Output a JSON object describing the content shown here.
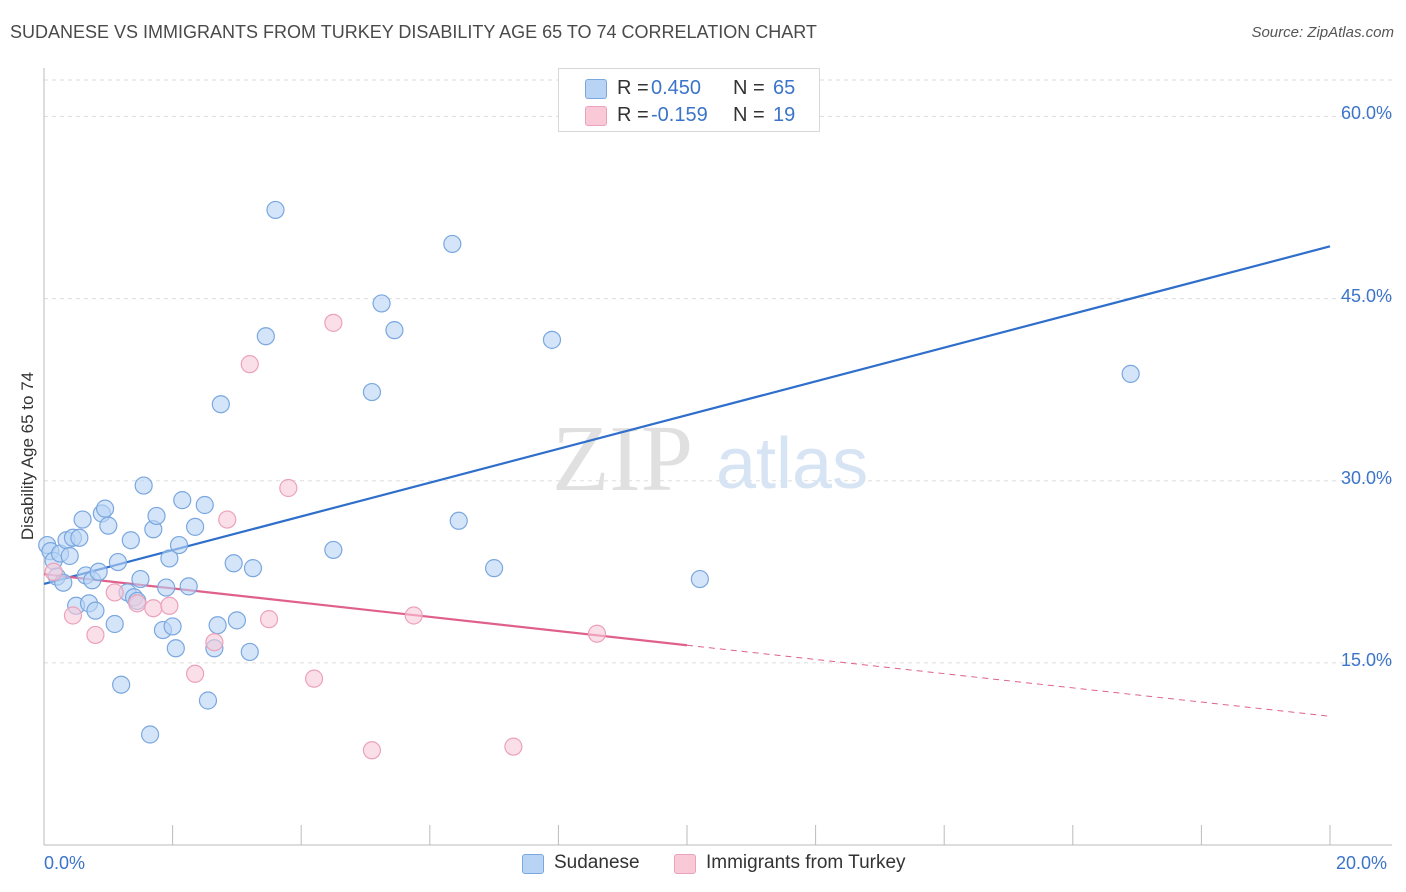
{
  "title": "SUDANESE VS IMMIGRANTS FROM TURKEY DISABILITY AGE 65 TO 74 CORRELATION CHART",
  "source": "Source: ZipAtlas.com",
  "watermark": {
    "zip": "ZIP",
    "atlas": "atlas"
  },
  "legend_top": {
    "rows": [
      {
        "r_label": "R =",
        "r_value": "0.450",
        "n_label": "N =",
        "n_value": "65"
      },
      {
        "r_label": "R =",
        "r_value": "-0.159",
        "n_label": "N =",
        "n_value": "19"
      }
    ]
  },
  "bottom_legend": {
    "items": [
      "Sudanese",
      "Immigrants from Turkey"
    ]
  },
  "colors": {
    "blue_fill": "#b9d3f5",
    "blue_stroke": "#7aa7df",
    "blue_line": "#2f6fcb",
    "pink_fill": "#f9c9d8",
    "pink_stroke": "#eba2ba",
    "pink_line": "#e0608c",
    "tick_text": "#3b74c9",
    "grid": "#dddddd"
  },
  "chart_data": {
    "type": "scatter",
    "title": "SUDANESE VS IMMIGRANTS FROM TURKEY DISABILITY AGE 65 TO 74 CORRELATION CHART",
    "xlabel": "",
    "ylabel": "Disability Age 65 to 74",
    "xlim": [
      0,
      20
    ],
    "ylim": [
      0,
      63
    ],
    "x_tick_labels": [
      "0.0%",
      "20.0%"
    ],
    "y_ticks": [
      15,
      30,
      45,
      60
    ],
    "y_tick_labels": [
      "15.0%",
      "30.0%",
      "45.0%",
      "60.0%"
    ],
    "grid": "horizontal dashed",
    "legend": "top-center",
    "series": [
      {
        "name": "Sudanese",
        "R": 0.45,
        "N": 65,
        "trend": {
          "x": [
            0,
            20
          ],
          "y": [
            21.5,
            49.3
          ],
          "dashed_from": null
        },
        "points": [
          [
            0.05,
            24.7
          ],
          [
            0.1,
            24.2
          ],
          [
            0.15,
            23.4
          ],
          [
            0.2,
            22.1
          ],
          [
            0.25,
            24.0
          ],
          [
            0.3,
            21.6
          ],
          [
            0.35,
            25.1
          ],
          [
            0.4,
            23.8
          ],
          [
            0.45,
            25.3
          ],
          [
            0.5,
            19.7
          ],
          [
            0.55,
            25.3
          ],
          [
            0.6,
            26.8
          ],
          [
            0.65,
            22.2
          ],
          [
            0.7,
            19.9
          ],
          [
            0.75,
            21.8
          ],
          [
            0.8,
            19.3
          ],
          [
            0.85,
            22.5
          ],
          [
            0.9,
            27.3
          ],
          [
            0.95,
            27.7
          ],
          [
            1.0,
            26.3
          ],
          [
            1.1,
            18.2
          ],
          [
            1.15,
            23.3
          ],
          [
            1.2,
            13.2
          ],
          [
            1.3,
            20.8
          ],
          [
            1.35,
            25.1
          ],
          [
            1.4,
            20.4
          ],
          [
            1.45,
            20.1
          ],
          [
            1.5,
            21.9
          ],
          [
            1.55,
            29.6
          ],
          [
            1.65,
            9.1
          ],
          [
            1.7,
            26.0
          ],
          [
            1.75,
            27.1
          ],
          [
            1.85,
            17.7
          ],
          [
            1.9,
            21.2
          ],
          [
            1.95,
            23.6
          ],
          [
            2.0,
            18.0
          ],
          [
            2.05,
            16.2
          ],
          [
            2.1,
            24.7
          ],
          [
            2.15,
            28.4
          ],
          [
            2.25,
            21.3
          ],
          [
            2.35,
            26.2
          ],
          [
            2.5,
            28.0
          ],
          [
            2.55,
            11.9
          ],
          [
            2.65,
            16.2
          ],
          [
            2.7,
            18.1
          ],
          [
            2.75,
            36.3
          ],
          [
            2.95,
            23.2
          ],
          [
            3.0,
            18.5
          ],
          [
            3.2,
            15.9
          ],
          [
            3.25,
            22.8
          ],
          [
            3.45,
            41.9
          ],
          [
            3.6,
            52.3
          ],
          [
            4.5,
            24.3
          ],
          [
            5.1,
            37.3
          ],
          [
            5.25,
            44.6
          ],
          [
            5.45,
            42.4
          ],
          [
            6.35,
            49.5
          ],
          [
            6.45,
            26.7
          ],
          [
            7.0,
            22.8
          ],
          [
            7.9,
            41.6
          ],
          [
            10.2,
            21.9
          ],
          [
            16.9,
            38.8
          ]
        ]
      },
      {
        "name": "Immigrants from Turkey",
        "R": -0.159,
        "N": 19,
        "trend": {
          "x": [
            0,
            20
          ],
          "y": [
            22.3,
            10.6
          ],
          "dashed_from": 10
        },
        "points": [
          [
            0.15,
            22.5
          ],
          [
            0.45,
            18.9
          ],
          [
            0.8,
            17.3
          ],
          [
            1.1,
            20.8
          ],
          [
            1.45,
            19.9
          ],
          [
            1.7,
            19.5
          ],
          [
            1.95,
            19.7
          ],
          [
            2.35,
            14.1
          ],
          [
            2.65,
            16.7
          ],
          [
            2.85,
            26.8
          ],
          [
            3.2,
            39.6
          ],
          [
            3.5,
            18.6
          ],
          [
            3.8,
            29.4
          ],
          [
            4.2,
            13.7
          ],
          [
            4.5,
            43.0
          ],
          [
            5.1,
            7.8
          ],
          [
            5.75,
            18.9
          ],
          [
            7.3,
            8.1
          ],
          [
            8.6,
            17.4
          ]
        ]
      }
    ]
  }
}
